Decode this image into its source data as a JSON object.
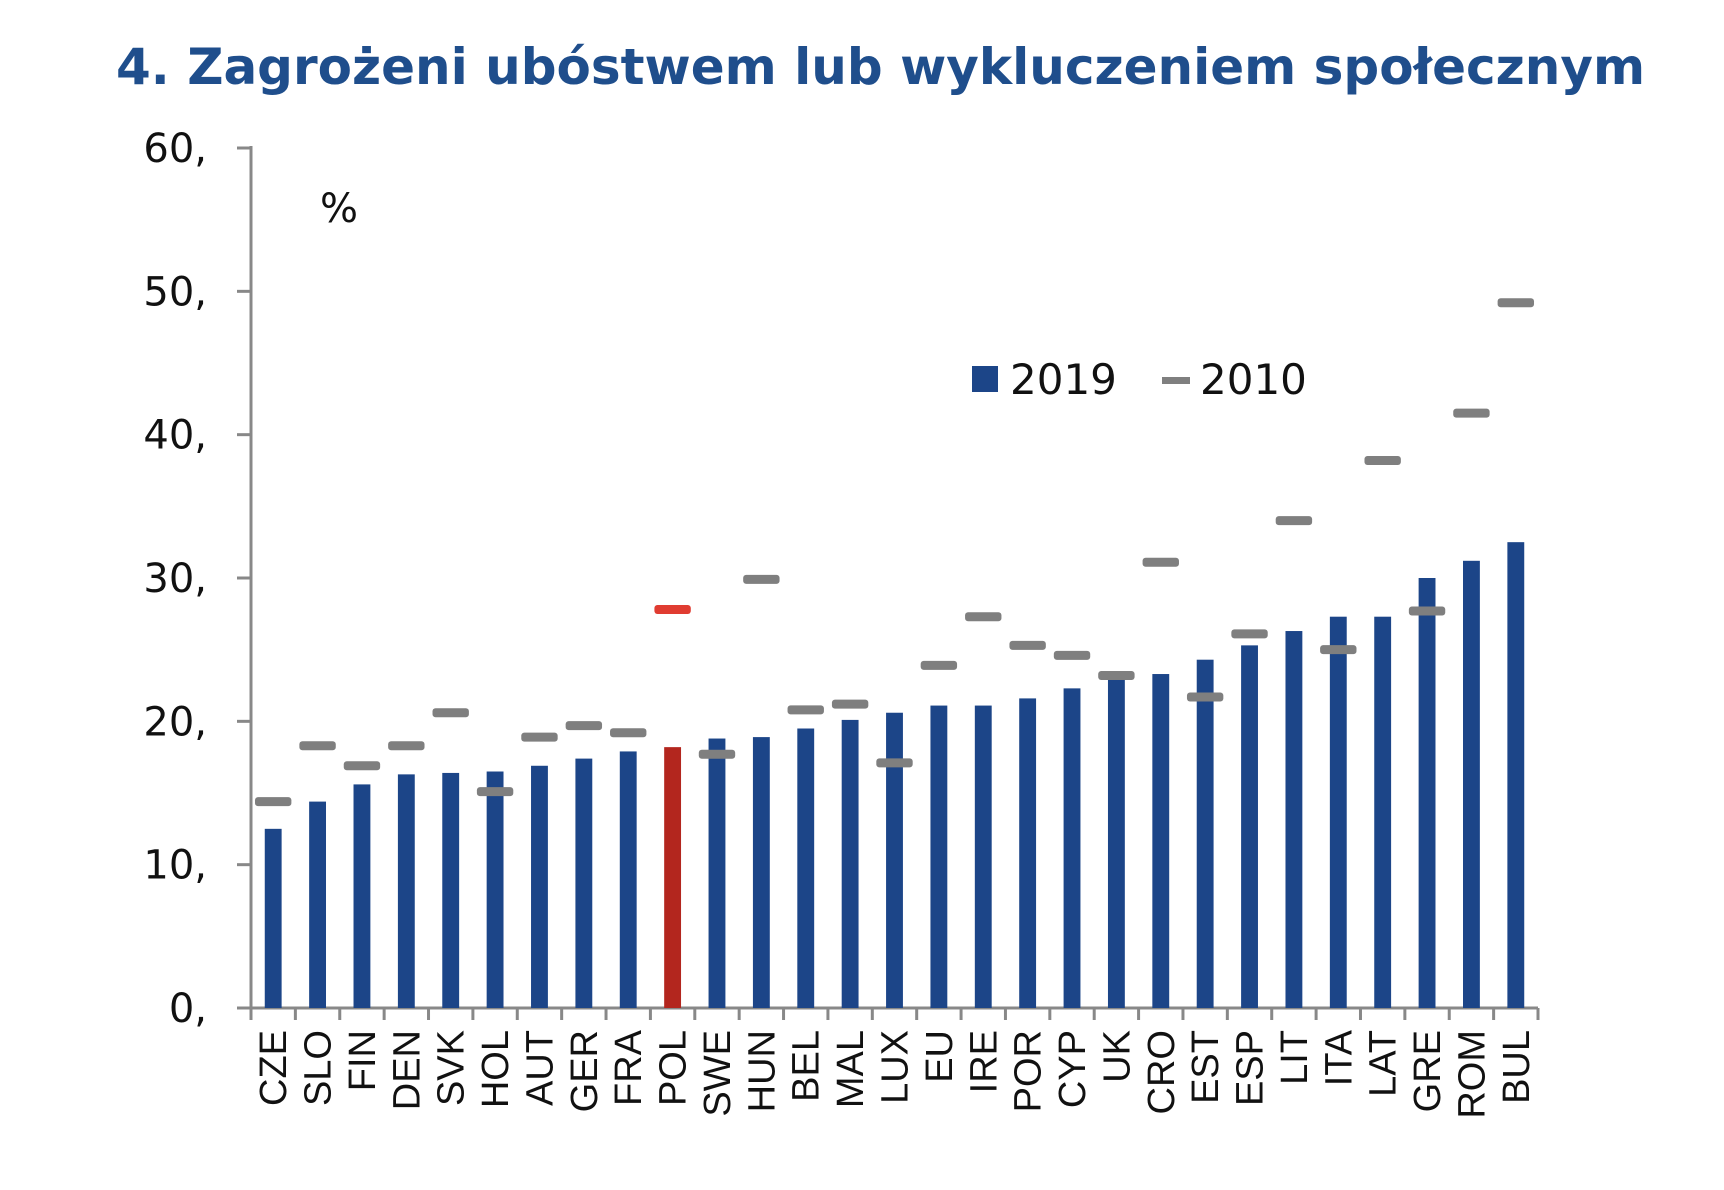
{
  "chart_data": {
    "type": "bar",
    "title": "4. Zagrożeni ubóstwem lub wykluczeniem społecznym",
    "unit_label": "%",
    "ylim": [
      0,
      60
    ],
    "yticks": [
      0,
      10,
      20,
      30,
      40,
      50,
      60
    ],
    "ytick_labels": [
      "0,",
      "10,",
      "20,",
      "30,",
      "40,",
      "50,",
      "60,"
    ],
    "categories": [
      "CZE",
      "SLO",
      "FIN",
      "DEN",
      "SVK",
      "HOL",
      "AUT",
      "GER",
      "FRA",
      "POL",
      "SWE",
      "HUN",
      "BEL",
      "MAL",
      "LUX",
      "EU",
      "IRE",
      "POR",
      "CYP",
      "UK",
      "CRO",
      "EST",
      "ESP",
      "LIT",
      "ITA",
      "LAT",
      "GRE",
      "ROM",
      "BUL"
    ],
    "series": [
      {
        "name": "2019",
        "style": "bar",
        "values": [
          12.5,
          14.4,
          15.6,
          16.3,
          16.4,
          16.5,
          16.9,
          17.4,
          17.9,
          18.2,
          18.8,
          18.9,
          19.5,
          20.1,
          20.6,
          21.1,
          21.1,
          21.6,
          22.3,
          23.2,
          23.3,
          24.3,
          25.3,
          26.3,
          27.3,
          27.3,
          30.0,
          31.2,
          32.5
        ]
      },
      {
        "name": "2010",
        "style": "marker",
        "values": [
          14.4,
          18.3,
          16.9,
          18.3,
          20.6,
          15.1,
          18.9,
          19.7,
          19.2,
          27.8,
          17.7,
          29.9,
          20.8,
          21.2,
          17.1,
          23.9,
          27.3,
          25.3,
          24.6,
          23.2,
          31.1,
          21.7,
          26.1,
          34.0,
          25.0,
          38.2,
          27.7,
          41.5,
          49.2
        ]
      }
    ],
    "highlight_category": "POL",
    "legend_position": "top-center",
    "grid": false,
    "colors": {
      "bar": "#1c4588",
      "bar_highlight": "#b3261e",
      "marker": "#7f7f7f",
      "marker_highlight": "#e03c31",
      "axis": "#888888",
      "title": "#1f4e8c"
    }
  }
}
